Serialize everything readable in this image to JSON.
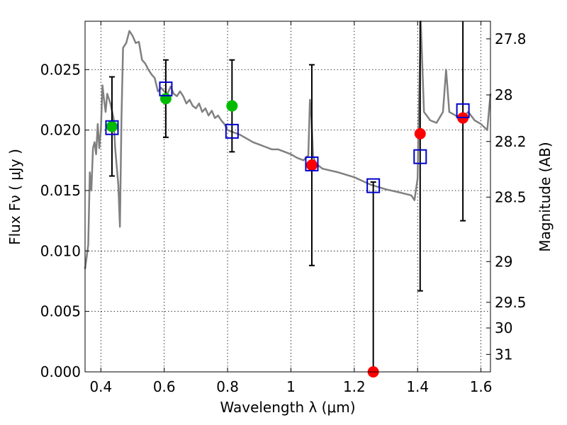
{
  "chart_data": {
    "type": "scatter",
    "title": "",
    "xlabel": "Wavelength  λ (μm)",
    "ylabel_left": "Flux  Fν  ( μJy )",
    "ylabel_right": "Magnitude (AB)",
    "xlim": [
      0.35,
      1.63
    ],
    "ylim": [
      0.0,
      0.029
    ],
    "grid": true,
    "x_ticks": [
      0.4,
      0.6,
      0.8,
      1.0,
      1.2,
      1.4,
      1.6
    ],
    "x_tick_labels": [
      "0.4",
      "0.6",
      "0.8",
      "1",
      "1.2",
      "1.4",
      "1.6"
    ],
    "y_ticks": [
      0.0,
      0.005,
      0.01,
      0.015,
      0.02,
      0.025
    ],
    "y_tick_labels": [
      "0.000",
      "0.005",
      "0.010",
      "0.015",
      "0.020",
      "0.025"
    ],
    "mag_ticks": [
      27.8,
      28.0,
      28.2,
      28.5,
      29.0,
      29.5,
      30.0,
      31.0
    ],
    "mag_tick_labels": [
      "27.8",
      "28",
      "28.2",
      "28.5",
      "29",
      "29.5",
      "30",
      "31"
    ],
    "series": [
      {
        "role": "model-spectrum",
        "color": "#808080",
        "x": [
          0.35,
          0.36,
          0.365,
          0.37,
          0.375,
          0.38,
          0.385,
          0.39,
          0.395,
          0.4,
          0.405,
          0.41,
          0.415,
          0.42,
          0.43,
          0.44,
          0.445,
          0.45,
          0.455,
          0.46,
          0.465,
          0.47,
          0.48,
          0.49,
          0.5,
          0.51,
          0.52,
          0.53,
          0.54,
          0.55,
          0.56,
          0.57,
          0.58,
          0.59,
          0.6,
          0.61,
          0.62,
          0.63,
          0.64,
          0.65,
          0.66,
          0.67,
          0.68,
          0.69,
          0.7,
          0.71,
          0.72,
          0.73,
          0.74,
          0.75,
          0.76,
          0.77,
          0.78,
          0.79,
          0.8,
          0.82,
          0.84,
          0.86,
          0.88,
          0.9,
          0.92,
          0.94,
          0.96,
          0.98,
          1.0,
          1.02,
          1.04,
          1.055,
          1.06,
          1.065,
          1.07,
          1.08,
          1.1,
          1.15,
          1.2,
          1.25,
          1.3,
          1.35,
          1.38,
          1.39,
          1.4,
          1.405,
          1.41,
          1.42,
          1.44,
          1.46,
          1.48,
          1.49,
          1.5,
          1.52,
          1.54,
          1.56,
          1.58,
          1.6,
          1.62,
          1.63
        ],
        "y": [
          0.0085,
          0.0105,
          0.0165,
          0.015,
          0.0185,
          0.019,
          0.018,
          0.0205,
          0.0185,
          0.02,
          0.0237,
          0.0225,
          0.0215,
          0.023,
          0.0222,
          0.021,
          0.0185,
          0.017,
          0.0155,
          0.012,
          0.021,
          0.0268,
          0.0272,
          0.0282,
          0.0278,
          0.0272,
          0.0273,
          0.0258,
          0.0255,
          0.025,
          0.0246,
          0.0243,
          0.0232,
          0.0235,
          0.0232,
          0.023,
          0.0236,
          0.023,
          0.0228,
          0.0232,
          0.0228,
          0.0222,
          0.0225,
          0.022,
          0.0218,
          0.0222,
          0.0215,
          0.0218,
          0.0212,
          0.0216,
          0.021,
          0.0212,
          0.0208,
          0.0205,
          0.02,
          0.0198,
          0.0196,
          0.0193,
          0.019,
          0.0188,
          0.0186,
          0.0184,
          0.0184,
          0.0182,
          0.018,
          0.0177,
          0.0175,
          0.0179,
          0.0225,
          0.021,
          0.0178,
          0.0172,
          0.0168,
          0.0165,
          0.0161,
          0.0155,
          0.0151,
          0.0148,
          0.0146,
          0.0142,
          0.016,
          0.023,
          0.029,
          0.0215,
          0.0208,
          0.0206,
          0.0215,
          0.025,
          0.0215,
          0.0212,
          0.021,
          0.0215,
          0.0208,
          0.0205,
          0.02,
          0.023
        ]
      },
      {
        "role": "observed-detections",
        "color": "#00bb00",
        "x": [
          0.435,
          0.605,
          0.814
        ],
        "y": [
          0.0203,
          0.0226,
          0.022
        ],
        "yerr": [
          0.0041,
          0.0032,
          0.0038
        ]
      },
      {
        "role": "observed-upper-limits",
        "color": "#ff0000",
        "x": [
          1.066,
          1.26,
          1.408,
          1.543
        ],
        "y": [
          0.0171,
          0.0,
          0.0197,
          0.021
        ],
        "yerr": [
          0.0083,
          0.0157,
          0.013,
          0.0085
        ]
      },
      {
        "role": "model-photometry",
        "color": "#0000cc",
        "x": [
          0.435,
          0.605,
          0.814,
          1.066,
          1.26,
          1.408,
          1.543
        ],
        "y": [
          0.0202,
          0.0234,
          0.0199,
          0.0172,
          0.0154,
          0.0178,
          0.0216
        ]
      }
    ]
  }
}
